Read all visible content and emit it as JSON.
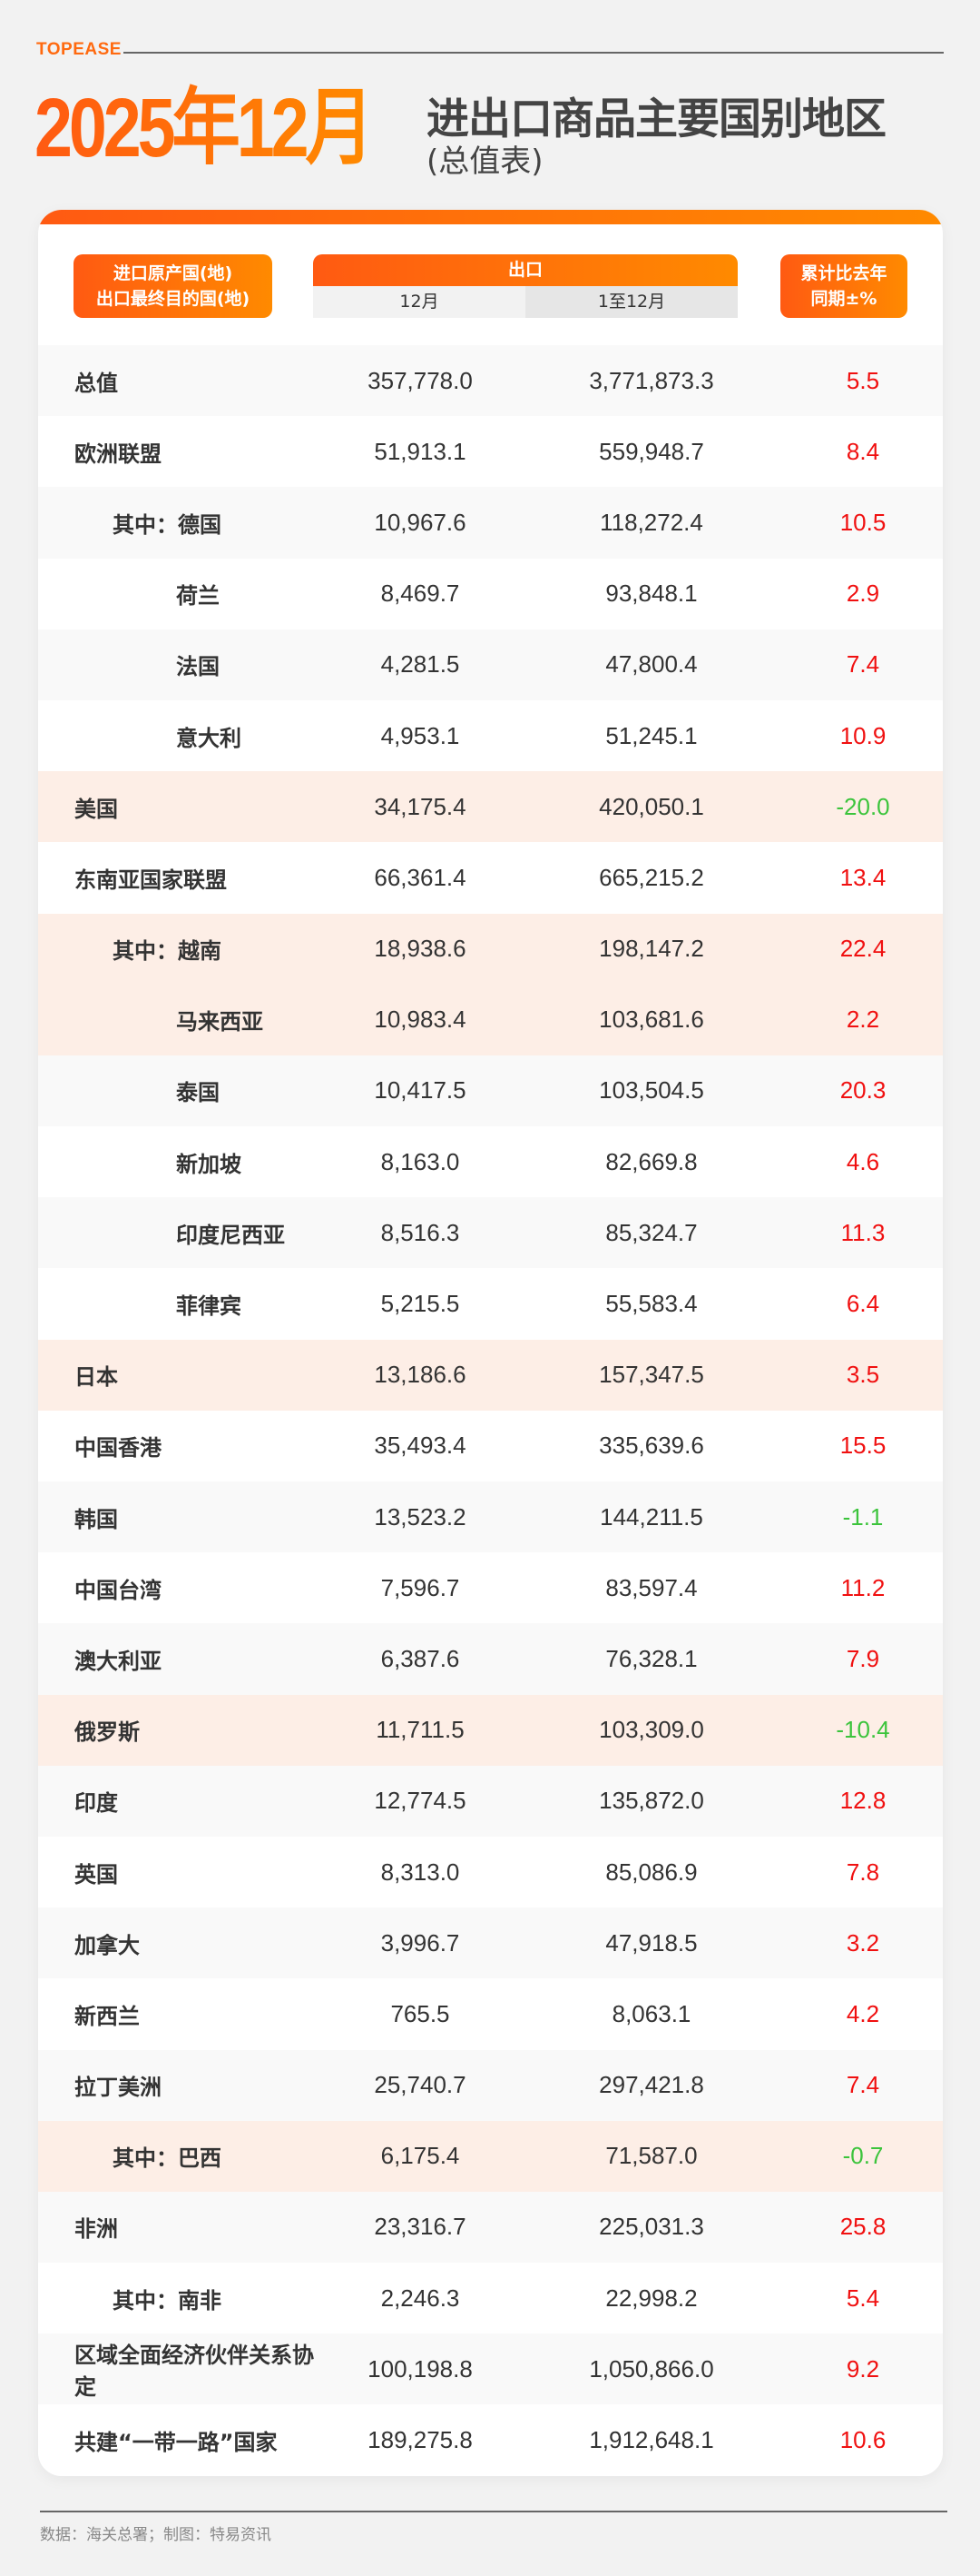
{
  "brand": "TOPEASE",
  "title_big": "2025年12月",
  "title": "进出口商品主要国别地区",
  "subtitle": "(总值表)",
  "header": {
    "col_name_line1": "进口原产国(地)",
    "col_name_line2": "出口最终目的国(地)",
    "export": "出口",
    "month": "12月",
    "ytd": "1至12月",
    "pct_line1": "累计比去年",
    "pct_line2": "同期±%"
  },
  "colors": {
    "accent": "#ff6a10",
    "positive": "#f01010",
    "negative": "#3cc43c",
    "highlight": "#fdeee6"
  },
  "rows": [
    {
      "name": "总值",
      "m": "357,778.0",
      "ytd": "3,771,873.3",
      "pct": "5.5",
      "level": 0
    },
    {
      "name": "欧洲联盟",
      "m": "51,913.1",
      "ytd": "559,948.7",
      "pct": "8.4",
      "level": 0
    },
    {
      "name": "其中：德国",
      "m": "10,967.6",
      "ytd": "118,272.4",
      "pct": "10.5",
      "level": 1
    },
    {
      "name": "荷兰",
      "m": "8,469.7",
      "ytd": "93,848.1",
      "pct": "2.9",
      "level": 2
    },
    {
      "name": "法国",
      "m": "4,281.5",
      "ytd": "47,800.4",
      "pct": "7.4",
      "level": 2
    },
    {
      "name": "意大利",
      "m": "4,953.1",
      "ytd": "51,245.1",
      "pct": "10.9",
      "level": 2
    },
    {
      "name": "美国",
      "m": "34,175.4",
      "ytd": "420,050.1",
      "pct": "-20.0",
      "level": 0,
      "hl": true
    },
    {
      "name": "东南亚国家联盟",
      "m": "66,361.4",
      "ytd": "665,215.2",
      "pct": "13.4",
      "level": 0
    },
    {
      "name": "其中：越南",
      "m": "18,938.6",
      "ytd": "198,147.2",
      "pct": "22.4",
      "level": 1,
      "hl": true
    },
    {
      "name": "马来西亚",
      "m": "10,983.4",
      "ytd": "103,681.6",
      "pct": "2.2",
      "level": 2,
      "hl": true
    },
    {
      "name": "泰国",
      "m": "10,417.5",
      "ytd": "103,504.5",
      "pct": "20.3",
      "level": 2
    },
    {
      "name": "新加坡",
      "m": "8,163.0",
      "ytd": "82,669.8",
      "pct": "4.6",
      "level": 2
    },
    {
      "name": "印度尼西亚",
      "m": "8,516.3",
      "ytd": "85,324.7",
      "pct": "11.3",
      "level": 2
    },
    {
      "name": "菲律宾",
      "m": "5,215.5",
      "ytd": "55,583.4",
      "pct": "6.4",
      "level": 2
    },
    {
      "name": "日本",
      "m": "13,186.6",
      "ytd": "157,347.5",
      "pct": "3.5",
      "level": 0,
      "hl": true
    },
    {
      "name": "中国香港",
      "m": "35,493.4",
      "ytd": "335,639.6",
      "pct": "15.5",
      "level": 0
    },
    {
      "name": "韩国",
      "m": "13,523.2",
      "ytd": "144,211.5",
      "pct": "-1.1",
      "level": 0
    },
    {
      "name": "中国台湾",
      "m": "7,596.7",
      "ytd": "83,597.4",
      "pct": "11.2",
      "level": 0
    },
    {
      "name": "澳大利亚",
      "m": "6,387.6",
      "ytd": "76,328.1",
      "pct": "7.9",
      "level": 0
    },
    {
      "name": "俄罗斯",
      "m": "11,711.5",
      "ytd": "103,309.0",
      "pct": "-10.4",
      "level": 0,
      "hl": true
    },
    {
      "name": "印度",
      "m": "12,774.5",
      "ytd": "135,872.0",
      "pct": "12.8",
      "level": 0
    },
    {
      "name": "英国",
      "m": "8,313.0",
      "ytd": "85,086.9",
      "pct": "7.8",
      "level": 0
    },
    {
      "name": "加拿大",
      "m": "3,996.7",
      "ytd": "47,918.5",
      "pct": "3.2",
      "level": 0
    },
    {
      "name": "新西兰",
      "m": "765.5",
      "ytd": "8,063.1",
      "pct": "4.2",
      "level": 0
    },
    {
      "name": "拉丁美洲",
      "m": "25,740.7",
      "ytd": "297,421.8",
      "pct": "7.4",
      "level": 0
    },
    {
      "name": "其中：巴西",
      "m": "6,175.4",
      "ytd": "71,587.0",
      "pct": "-0.7",
      "level": 1,
      "hl": true
    },
    {
      "name": "非洲",
      "m": "23,316.7",
      "ytd": "225,031.3",
      "pct": "25.8",
      "level": 0
    },
    {
      "name": "其中：南非",
      "m": "2,246.3",
      "ytd": "22,998.2",
      "pct": "5.4",
      "level": 1
    },
    {
      "name": "区域全面经济伙伴关系协定",
      "m": "100,198.8",
      "ytd": "1,050,866.0",
      "pct": "9.2",
      "level": 0
    },
    {
      "name": "共建“一带一路”国家",
      "m": "189,275.8",
      "ytd": "1,912,648.1",
      "pct": "10.6",
      "level": 0
    }
  ],
  "footer": "数据：海关总署；制图：特易资讯"
}
